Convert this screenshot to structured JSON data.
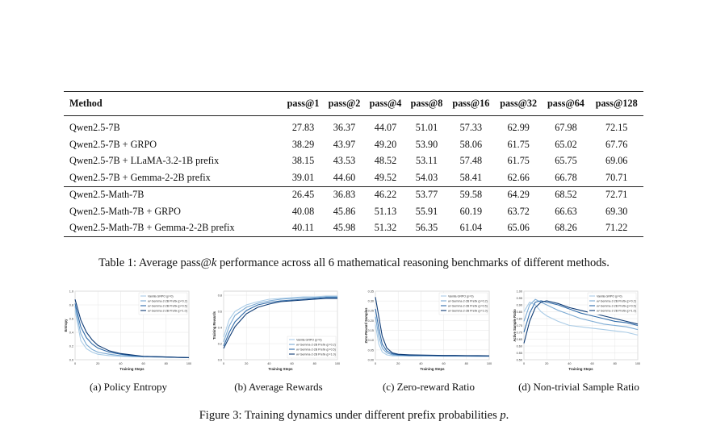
{
  "table": {
    "headers": [
      "Method",
      "pass@1",
      "pass@2",
      "pass@4",
      "pass@8",
      "pass@16",
      "pass@32",
      "pass@64",
      "pass@128"
    ],
    "groups": [
      [
        [
          "Qwen2.5-7B",
          "27.83",
          "36.37",
          "44.07",
          "51.01",
          "57.33",
          "62.99",
          "67.98",
          "72.15"
        ],
        [
          "Qwen2.5-7B + GRPO",
          "38.29",
          "43.97",
          "49.20",
          "53.90",
          "58.06",
          "61.75",
          "65.02",
          "67.76"
        ],
        [
          "Qwen2.5-7B + LLaMA-3.2-1B prefix",
          "38.15",
          "43.53",
          "48.52",
          "53.11",
          "57.48",
          "61.75",
          "65.75",
          "69.06"
        ],
        [
          "Qwen2.5-7B + Gemma-2-2B prefix",
          "39.01",
          "44.60",
          "49.52",
          "54.03",
          "58.41",
          "62.66",
          "66.78",
          "70.71"
        ]
      ],
      [
        [
          "Qwen2.5-Math-7B",
          "26.45",
          "36.83",
          "46.22",
          "53.77",
          "59.58",
          "64.29",
          "68.52",
          "72.71"
        ],
        [
          "Qwen2.5-Math-7B + GRPO",
          "40.08",
          "45.86",
          "51.13",
          "55.91",
          "60.19",
          "63.72",
          "66.63",
          "69.30"
        ],
        [
          "Qwen2.5-Math-7B + Gemma-2-2B prefix",
          "40.11",
          "45.98",
          "51.32",
          "56.35",
          "61.04",
          "65.06",
          "68.26",
          "71.22"
        ]
      ]
    ]
  },
  "table_caption": {
    "prefix": "Table 1: Average pass@",
    "k": "k",
    "suffix": " performance across all 6 mathematical reasoning benchmarks of different methods."
  },
  "figure_caption": {
    "text": "Figure 3: Training dynamics under different prefix probabilities ",
    "p": "p",
    "end": "."
  },
  "series_colors": [
    "#a9cbe6",
    "#7aa9d3",
    "#2f6aa8",
    "#0d3a74"
  ],
  "chart_data": [
    {
      "type": "line",
      "caption": "(a) Policy Entropy",
      "xlabel": "Training Steps",
      "ylabel": "Entropy",
      "xlim": [
        0,
        100
      ],
      "ylim": [
        0,
        1.0
      ],
      "xticks": [
        "0",
        "20",
        "40",
        "60",
        "80",
        "100"
      ],
      "yticks": [
        "0.0",
        "0.2",
        "0.4",
        "0.6",
        "0.8",
        "1.0"
      ],
      "grid": true,
      "legend_position": "top-right",
      "series": [
        {
          "name": "Vanilla GRPO (p=0)",
          "x": [
            0,
            5,
            10,
            15,
            20,
            30,
            40,
            50,
            60,
            70,
            80,
            90,
            100
          ],
          "y": [
            0.72,
            0.28,
            0.16,
            0.11,
            0.08,
            0.06,
            0.05,
            0.045,
            0.04,
            0.04,
            0.035,
            0.035,
            0.03
          ]
        },
        {
          "name": "w/ Gemma-2-2B Prefix (p=0.2)",
          "x": [
            0,
            5,
            10,
            15,
            20,
            30,
            40,
            50,
            60,
            70,
            80,
            90,
            100
          ],
          "y": [
            0.78,
            0.38,
            0.22,
            0.15,
            0.11,
            0.08,
            0.06,
            0.05,
            0.045,
            0.04,
            0.04,
            0.035,
            0.03
          ]
        },
        {
          "name": "w/ Gemma-2-2B Prefix (p=0.5)",
          "x": [
            0,
            5,
            10,
            15,
            20,
            30,
            40,
            50,
            60,
            70,
            80,
            90,
            100
          ],
          "y": [
            0.82,
            0.48,
            0.32,
            0.23,
            0.17,
            0.11,
            0.08,
            0.06,
            0.05,
            0.045,
            0.04,
            0.035,
            0.03
          ]
        },
        {
          "name": "w/ Gemma-2-2B Prefix (p=1.0)",
          "x": [
            0,
            5,
            10,
            15,
            20,
            30,
            40,
            50,
            60,
            70,
            80,
            90,
            100
          ],
          "y": [
            0.88,
            0.58,
            0.4,
            0.29,
            0.21,
            0.13,
            0.09,
            0.07,
            0.05,
            0.045,
            0.04,
            0.035,
            0.03
          ]
        }
      ]
    },
    {
      "type": "line",
      "caption": "(b) Average Rewards",
      "xlabel": "Training Steps",
      "ylabel": "Training Rewards",
      "xlim": [
        0,
        100
      ],
      "ylim": [
        0,
        0.85
      ],
      "xticks": [
        "0",
        "20",
        "40",
        "60",
        "80",
        "100"
      ],
      "yticks": [
        "0.0",
        "0.2",
        "0.4",
        "0.6",
        "0.8"
      ],
      "grid": true,
      "legend_position": "bottom-right",
      "series": [
        {
          "name": "Vanilla GRPO (p=0)",
          "x": [
            0,
            5,
            10,
            20,
            30,
            40,
            50,
            60,
            70,
            80,
            90,
            100
          ],
          "y": [
            0.28,
            0.5,
            0.6,
            0.68,
            0.72,
            0.75,
            0.76,
            0.77,
            0.78,
            0.78,
            0.79,
            0.79
          ]
        },
        {
          "name": "w/ Gemma-2-2B Prefix (p=0.2)",
          "x": [
            0,
            5,
            10,
            20,
            30,
            40,
            50,
            60,
            70,
            80,
            90,
            100
          ],
          "y": [
            0.22,
            0.42,
            0.55,
            0.65,
            0.7,
            0.73,
            0.75,
            0.76,
            0.77,
            0.77,
            0.78,
            0.78
          ]
        },
        {
          "name": "w/ Gemma-2-2B Prefix (p=0.5)",
          "x": [
            0,
            5,
            10,
            20,
            30,
            40,
            50,
            60,
            70,
            80,
            90,
            100
          ],
          "y": [
            0.17,
            0.34,
            0.47,
            0.61,
            0.68,
            0.71,
            0.73,
            0.74,
            0.75,
            0.76,
            0.77,
            0.77
          ]
        },
        {
          "name": "w/ Gemma-2-2B Prefix (p=1.0)",
          "x": [
            0,
            5,
            10,
            20,
            30,
            40,
            50,
            60,
            70,
            80,
            90,
            100
          ],
          "y": [
            0.14,
            0.28,
            0.41,
            0.57,
            0.65,
            0.69,
            0.72,
            0.73,
            0.74,
            0.75,
            0.76,
            0.76
          ]
        }
      ]
    },
    {
      "type": "line",
      "caption": "(c) Zero-reward Ratio",
      "xlabel": "Training Steps",
      "ylabel": "Zero-Reward Samples",
      "xlim": [
        0,
        100
      ],
      "ylim": [
        0,
        0.35
      ],
      "xticks": [
        "0",
        "20",
        "40",
        "60",
        "80",
        "100"
      ],
      "yticks": [
        "0.00",
        "0.05",
        "0.10",
        "0.15",
        "0.20",
        "0.25",
        "0.30",
        "0.35"
      ],
      "grid": true,
      "legend_position": "top-right",
      "series": [
        {
          "name": "Vanilla GRPO (p=0)",
          "x": [
            0,
            3,
            6,
            10,
            15,
            20,
            30,
            40,
            50,
            60,
            70,
            80,
            90,
            100
          ],
          "y": [
            0.18,
            0.08,
            0.04,
            0.025,
            0.02,
            0.02,
            0.02,
            0.02,
            0.02,
            0.018,
            0.018,
            0.018,
            0.017,
            0.017
          ]
        },
        {
          "name": "w/ Gemma-2-2B Prefix (p=0.2)",
          "x": [
            0,
            3,
            6,
            10,
            15,
            20,
            30,
            40,
            50,
            60,
            70,
            80,
            90,
            100
          ],
          "y": [
            0.22,
            0.12,
            0.06,
            0.035,
            0.025,
            0.022,
            0.02,
            0.02,
            0.02,
            0.019,
            0.019,
            0.018,
            0.018,
            0.018
          ]
        },
        {
          "name": "w/ Gemma-2-2B Prefix (p=0.5)",
          "x": [
            0,
            3,
            6,
            10,
            15,
            20,
            30,
            40,
            50,
            60,
            70,
            80,
            90,
            100
          ],
          "y": [
            0.26,
            0.16,
            0.08,
            0.045,
            0.03,
            0.025,
            0.022,
            0.022,
            0.021,
            0.02,
            0.02,
            0.02,
            0.019,
            0.019
          ]
        },
        {
          "name": "w/ Gemma-2-2B Prefix (p=1.0)",
          "x": [
            0,
            3,
            6,
            10,
            15,
            20,
            30,
            40,
            50,
            60,
            70,
            80,
            90,
            100
          ],
          "y": [
            0.32,
            0.22,
            0.12,
            0.06,
            0.035,
            0.028,
            0.025,
            0.024,
            0.023,
            0.022,
            0.022,
            0.021,
            0.021,
            0.02
          ]
        }
      ]
    },
    {
      "type": "line",
      "caption": "(d) Non-trivial Sample Ratio",
      "xlabel": "Training Steps",
      "ylabel": "Active Sample Ratio",
      "xlim": [
        0,
        100
      ],
      "ylim": [
        0.5,
        1.0
      ],
      "xticks": [
        "0",
        "20",
        "40",
        "60",
        "80",
        "100"
      ],
      "yticks": [
        "0.50",
        "0.55",
        "0.60",
        "0.65",
        "0.70",
        "0.75",
        "0.80",
        "0.85",
        "0.90",
        "0.95",
        "1.00"
      ],
      "grid": true,
      "legend_position": "top-right",
      "series": [
        {
          "name": "Vanilla GRPO (p=0)",
          "x": [
            0,
            5,
            10,
            15,
            20,
            30,
            40,
            50,
            60,
            70,
            80,
            90,
            100
          ],
          "y": [
            0.85,
            0.92,
            0.9,
            0.85,
            0.82,
            0.78,
            0.75,
            0.74,
            0.73,
            0.72,
            0.71,
            0.7,
            0.68
          ]
        },
        {
          "name": "w/ Gemma-2-2B Prefix (p=0.2)",
          "x": [
            0,
            5,
            10,
            15,
            20,
            30,
            40,
            50,
            60,
            70,
            80,
            90,
            100
          ],
          "y": [
            0.78,
            0.9,
            0.94,
            0.92,
            0.9,
            0.86,
            0.83,
            0.8,
            0.78,
            0.76,
            0.75,
            0.74,
            0.72
          ]
        },
        {
          "name": "w/ Gemma-2-2B Prefix (p=0.5)",
          "x": [
            0,
            5,
            10,
            15,
            20,
            30,
            40,
            50,
            60,
            70,
            80,
            90,
            100
          ],
          "y": [
            0.7,
            0.84,
            0.92,
            0.93,
            0.92,
            0.9,
            0.87,
            0.84,
            0.82,
            0.8,
            0.78,
            0.77,
            0.75
          ]
        },
        {
          "name": "w/ Gemma-2-2B Prefix (p=1.0)",
          "x": [
            0,
            5,
            10,
            15,
            20,
            30,
            40,
            50,
            60,
            70,
            80,
            90,
            100
          ],
          "y": [
            0.62,
            0.78,
            0.88,
            0.92,
            0.93,
            0.91,
            0.88,
            0.86,
            0.84,
            0.82,
            0.8,
            0.78,
            0.76
          ]
        }
      ]
    }
  ]
}
